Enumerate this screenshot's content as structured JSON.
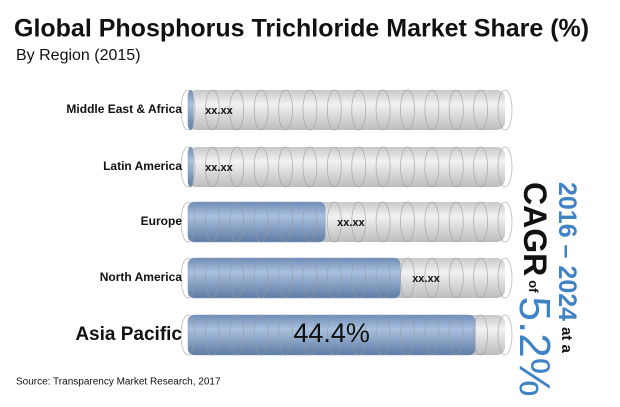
{
  "chart_data": {
    "type": "bar",
    "title": "Global Phosphorus Trichloride Market Share (%)",
    "subtitle": "By Region (2015)",
    "categories": [
      "Middle East & Africa",
      "Latin America",
      "Europe",
      "North America",
      "Asia Pacific"
    ],
    "values": [
      0.8,
      0.8,
      21.2,
      32.8,
      44.4
    ],
    "value_labels": [
      "xx.xx",
      "xx.xx",
      "xx.xx",
      "xx.xx",
      "44.4%"
    ],
    "color": "#7f9cc4",
    "xlim": [
      0,
      49
    ],
    "annotation": {
      "period": "2016 – 2024",
      "at": "at a",
      "cagr": "CAGR",
      "of": "of",
      "rate": "5.2%"
    },
    "source": "Source: Transparency Market Research, 2017"
  }
}
